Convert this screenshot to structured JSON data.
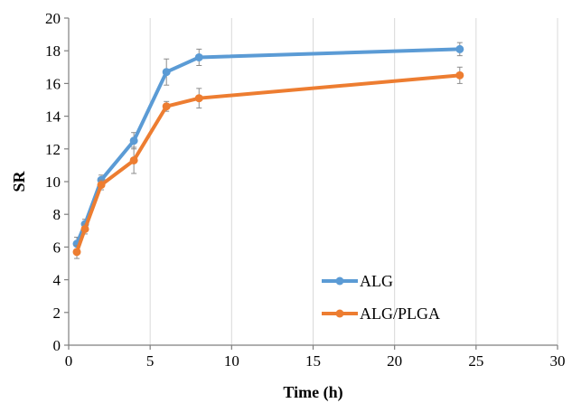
{
  "chart_data": {
    "type": "line",
    "title": "",
    "xlabel": "Time (h)",
    "ylabel": "SR",
    "xlim": [
      0,
      30
    ],
    "ylim": [
      0,
      20
    ],
    "xticks": [
      0,
      5,
      10,
      15,
      20,
      25,
      30
    ],
    "yticks": [
      0,
      2,
      4,
      6,
      8,
      10,
      12,
      14,
      16,
      18,
      20
    ],
    "x_grid": true,
    "y_grid": false,
    "legend_position": "bottom-right",
    "series": [
      {
        "name": "ALG",
        "color": "#5b9bd5",
        "x": [
          0.5,
          1,
          2,
          4,
          6,
          8,
          24
        ],
        "y": [
          6.2,
          7.4,
          10.1,
          12.5,
          16.7,
          17.6,
          18.1
        ],
        "error": [
          0.4,
          0.3,
          0.3,
          0.5,
          0.8,
          0.5,
          0.4
        ]
      },
      {
        "name": "ALG/PLGA",
        "color": "#ed7d31",
        "x": [
          0.5,
          1,
          2,
          4,
          6,
          8,
          24
        ],
        "y": [
          5.7,
          7.1,
          9.8,
          11.3,
          14.6,
          15.1,
          16.5
        ],
        "error": [
          0.4,
          0.3,
          0.3,
          0.8,
          0.3,
          0.6,
          0.5
        ]
      }
    ]
  }
}
